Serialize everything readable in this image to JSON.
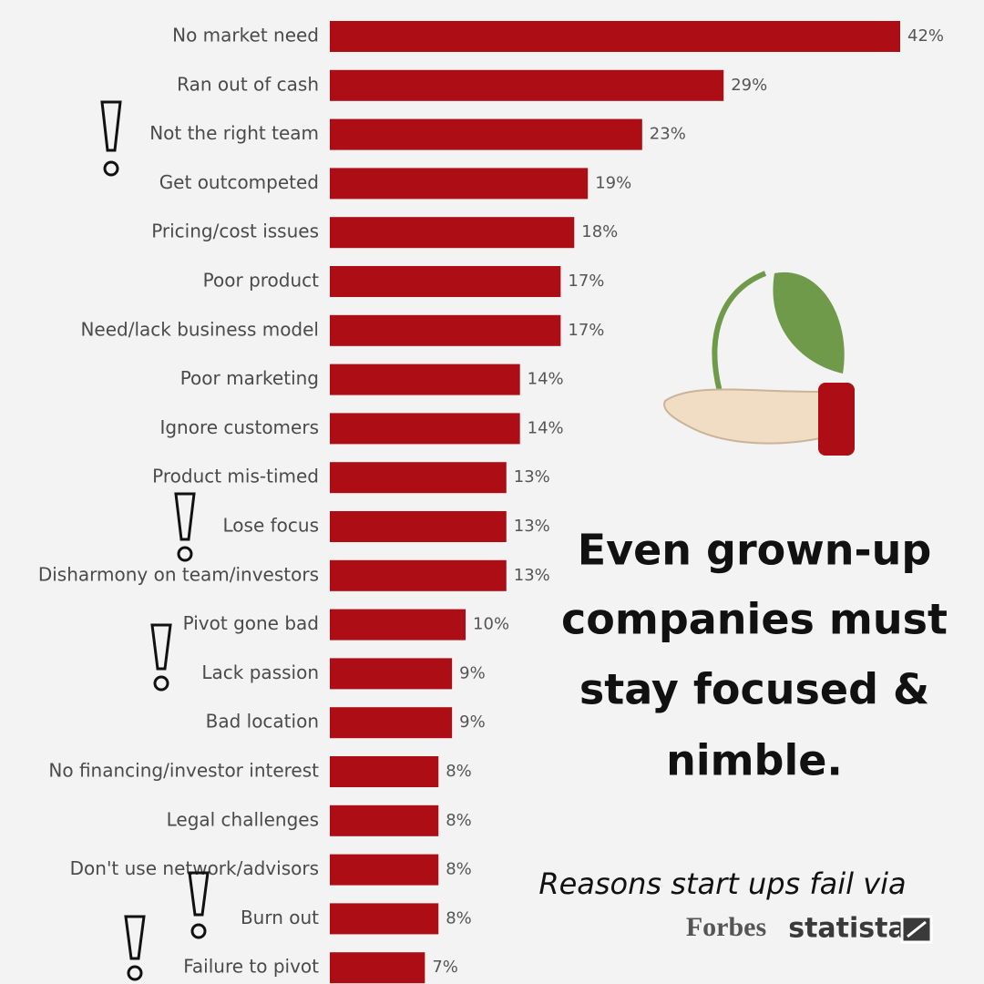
{
  "chart_data": {
    "type": "bar",
    "orientation": "horizontal",
    "categories": [
      "No market need",
      "Ran out of cash",
      "Not the right team",
      "Get outcompeted",
      "Pricing/cost issues",
      "Poor product",
      "Need/lack business model",
      "Poor marketing",
      "Ignore customers",
      "Product mis-timed",
      "Lose focus",
      "Disharmony on team/investors",
      "Pivot gone bad",
      "Lack passion",
      "Bad location",
      "No financing/investor interest",
      "Legal challenges",
      "Don't use network/advisors",
      "Burn out",
      "Failure to pivot"
    ],
    "values": [
      42,
      29,
      23,
      19,
      18,
      17,
      17,
      14,
      14,
      13,
      13,
      13,
      10,
      9,
      9,
      8,
      8,
      8,
      8,
      7
    ],
    "value_labels": [
      "42%",
      "29%",
      "23%",
      "19%",
      "18%",
      "17%",
      "17%",
      "14%",
      "14%",
      "13%",
      "13%",
      "13%",
      "10%",
      "9%",
      "9%",
      "8%",
      "8%",
      "8%",
      "8%",
      "7%"
    ],
    "color": "#ad0e16",
    "annotation": [
      "Even grown-up",
      "companies must",
      "stay focused &",
      "nimble."
    ],
    "source_note": "Reasons start ups fail via",
    "source_logos": [
      "Forbes",
      "statista"
    ]
  }
}
